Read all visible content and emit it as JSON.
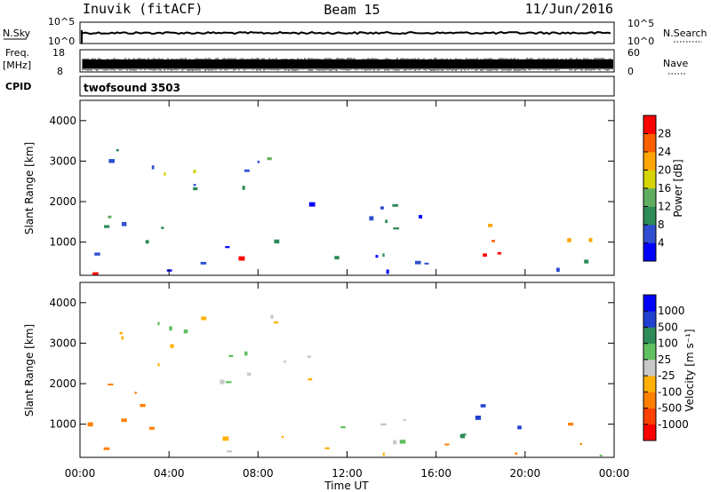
{
  "header": {
    "station": "Inuvik (fitACF)",
    "beam": "Beam 15",
    "date": "11/Jun/2016"
  },
  "strips": {
    "nsky_label": "N.Sky",
    "nsky_ticks": [
      "10^5",
      "10^0"
    ],
    "nsearch_label": "N.Search",
    "nsearch_ticks": [
      "10^5",
      "10^0"
    ],
    "freq_label": "Freq.",
    "freq_unit": "[MHz]",
    "freq_ticks": [
      "18",
      "8"
    ],
    "nave_label": "Nave",
    "nave_ticks": [
      "60",
      "0"
    ],
    "cpid_label": "CPID",
    "cpid_value": "twofsound 3503"
  },
  "colors": {
    "power": [
      "#0000ff",
      "#2f4fd0",
      "#2e8b57",
      "#5fae5f",
      "#d4d400",
      "#ffa500",
      "#ff6000",
      "#ff0000"
    ],
    "velocity": [
      "#ff0000",
      "#ff4000",
      "#ff8000",
      "#ffb000",
      "#c8c8c8",
      "#60c060",
      "#2e8b57",
      "#2040d0",
      "#0000ff"
    ]
  },
  "chart_data": [
    {
      "type": "heatmap",
      "name": "power",
      "xlabel": "",
      "ylabel": "Slant Range [km]",
      "yticks": [
        "1000",
        "2000",
        "3000",
        "4000"
      ],
      "ylim": [
        180,
        4500
      ],
      "xlim": [
        "00:00",
        "24:00"
      ],
      "colorbar_label": "Power [dB]",
      "colorbar_ticks": [
        "4",
        "8",
        "12",
        "16",
        "20",
        "24",
        "28"
      ],
      "clim": [
        0,
        32
      ],
      "regions": [
        {
          "t0": 0.2,
          "t1": 1.4,
          "r0": 200,
          "r1": 700,
          "v": 27
        },
        {
          "t0": 0.4,
          "t1": 3.8,
          "r0": 700,
          "r1": 2400,
          "v": 10
        },
        {
          "t0": 1.2,
          "t1": 3.4,
          "r0": 2500,
          "r1": 3700,
          "v": 8
        },
        {
          "t0": 2.6,
          "t1": 5.2,
          "r0": 2200,
          "r1": 2900,
          "v": 17
        },
        {
          "t0": 3.6,
          "t1": 4.2,
          "r0": 750,
          "r1": 1150,
          "v": 26
        },
        {
          "t0": 3.0,
          "t1": 6.0,
          "r0": 250,
          "r1": 700,
          "v": 8
        },
        {
          "t0": 5.0,
          "t1": 9.5,
          "r0": 2300,
          "r1": 3500,
          "v": 8
        },
        {
          "t0": 6.3,
          "t1": 9.6,
          "r0": 250,
          "r1": 650,
          "v": 30
        },
        {
          "t0": 6.3,
          "t1": 10.4,
          "r0": 700,
          "r1": 1100,
          "v": 6
        },
        {
          "t0": 9.5,
          "t1": 10.5,
          "r0": 2200,
          "r1": 2500,
          "v": 24
        },
        {
          "t0": 10.0,
          "t1": 16.5,
          "r0": 1300,
          "r1": 2200,
          "v": 5
        },
        {
          "t0": 10.0,
          "t1": 17.5,
          "r0": 250,
          "r1": 900,
          "v": 8
        },
        {
          "t0": 13.0,
          "t1": 16.0,
          "r0": 350,
          "r1": 650,
          "v": 12
        },
        {
          "t0": 15.8,
          "t1": 16.8,
          "r0": 300,
          "r1": 700,
          "v": 24
        },
        {
          "t0": 17.2,
          "t1": 20.0,
          "r0": 250,
          "r1": 800,
          "v": 28
        },
        {
          "t0": 17.2,
          "t1": 20.0,
          "r0": 1000,
          "r1": 1700,
          "v": 21
        },
        {
          "t0": 20.5,
          "t1": 23.0,
          "r0": 700,
          "r1": 1400,
          "v": 23
        },
        {
          "t0": 20.5,
          "t1": 24.0,
          "r0": 250,
          "r1": 650,
          "v": 9
        }
      ]
    },
    {
      "type": "heatmap",
      "name": "velocity",
      "xlabel": "Time UT",
      "ylabel": "Slant Range [km]",
      "yticks": [
        "1000",
        "2000",
        "3000",
        "4000"
      ],
      "ylim": [
        180,
        4500
      ],
      "xlim": [
        "00:00",
        "24:00"
      ],
      "xticks": [
        "00:00",
        "04:00",
        "08:00",
        "12:00",
        "16:00",
        "20:00",
        "00:00"
      ],
      "colorbar_label": "Velocity [m s⁻¹]",
      "colorbar_ticks": [
        "-1000",
        "-500",
        "-100",
        "-25",
        "25",
        "100",
        "500",
        "1000"
      ],
      "regions": [
        {
          "t0": 0.3,
          "t1": 1.8,
          "r0": 200,
          "r1": 1200,
          "v": -150
        },
        {
          "t0": 0.5,
          "t1": 3.6,
          "r0": 1000,
          "r1": 2200,
          "v": -200
        },
        {
          "t0": 2.2,
          "t1": 3.6,
          "r0": 2200,
          "r1": 2900,
          "v": -60
        },
        {
          "t0": 1.2,
          "t1": 9.0,
          "r0": 2800,
          "r1": 3800,
          "v": 0
        },
        {
          "t0": 3.4,
          "t1": 10.5,
          "r0": 1900,
          "r1": 2900,
          "v": 0
        },
        {
          "t0": 2.6,
          "t1": 4.2,
          "r0": 300,
          "r1": 1000,
          "v": -200
        },
        {
          "t0": 6.3,
          "t1": 10.0,
          "r0": 250,
          "r1": 1100,
          "v": 0
        },
        {
          "t0": 10.0,
          "t1": 16.5,
          "r0": 600,
          "r1": 1300,
          "v": 30
        },
        {
          "t0": 10.0,
          "t1": 17.0,
          "r0": 200,
          "r1": 600,
          "v": -80
        },
        {
          "t0": 15.6,
          "t1": 17.2,
          "r0": 500,
          "r1": 1500,
          "v": 150
        },
        {
          "t0": 17.2,
          "t1": 19.8,
          "r0": 800,
          "r1": 1700,
          "v": 700
        },
        {
          "t0": 18.2,
          "t1": 20.2,
          "r0": 200,
          "r1": 600,
          "v": -400
        },
        {
          "t0": 20.6,
          "t1": 23.0,
          "r0": 400,
          "r1": 1100,
          "v": -200
        },
        {
          "t0": 21.0,
          "t1": 24.0,
          "r0": 200,
          "r1": 500,
          "v": 40
        }
      ]
    }
  ]
}
